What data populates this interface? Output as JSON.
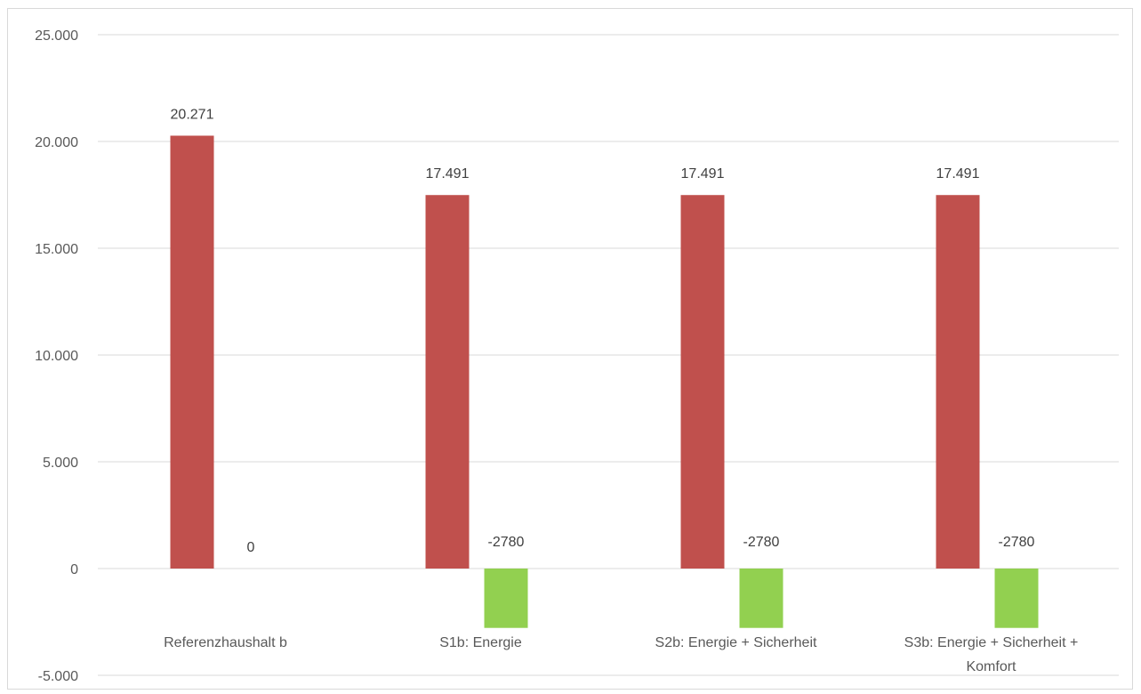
{
  "chart_data": {
    "type": "bar",
    "title": "",
    "xlabel": "",
    "ylabel": "",
    "categories": [
      "Referenzhaushalt b",
      "S1b: Energie",
      "S2b: Energie + Sicherheit",
      "S3b: Energie + Sicherheit + Komfort"
    ],
    "category_lines": [
      [
        "Referenzhaushalt b"
      ],
      [
        "S1b: Energie"
      ],
      [
        "S2b: Energie + Sicherheit"
      ],
      [
        "S3b: Energie + Sicherheit +",
        "Komfort"
      ]
    ],
    "series": [
      {
        "color": "#c0504d",
        "values": [
          20271,
          17491,
          17491,
          17491
        ],
        "labels": [
          "20.271",
          "17.491",
          "17.491",
          "17.491"
        ]
      },
      {
        "color": "#92d050",
        "values": [
          0,
          -2780,
          -2780,
          -2780
        ],
        "labels": [
          "0",
          "-2780",
          "-2780",
          "-2780"
        ]
      }
    ],
    "ylim": [
      -5000,
      25000
    ],
    "yticks": [
      25000,
      20000,
      15000,
      10000,
      5000,
      0,
      -5000
    ],
    "ytick_labels": [
      "25.000",
      "20.000",
      "15.000",
      "10.000",
      "5.000",
      "0",
      "-5.000"
    ],
    "grid": true,
    "legend": "none"
  }
}
